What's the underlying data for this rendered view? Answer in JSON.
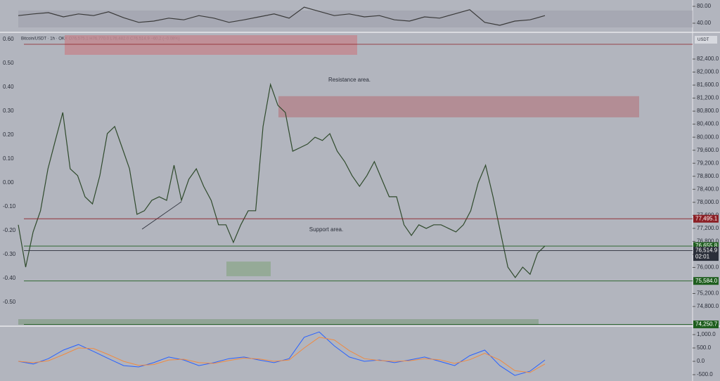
{
  "chart_data": [
    {
      "type": "line",
      "header": "Bitcoin/USDT · 1h · OKX  O76,575.1 H76,770.0 L76,482.0 C76,514.9 −60.2 (−0.08%)",
      "currency": "USDT",
      "color": "#2f4a2c",
      "ylim": [
        74239,
        83134
      ],
      "yticks": [
        {
          "value": 74800,
          "label": "74,800.0"
        },
        {
          "value": 75200,
          "label": "75,200.0"
        },
        {
          "value": 76000,
          "label": "76,000.0"
        },
        {
          "value": 76400,
          "label": "76,400.0"
        },
        {
          "value": 76800,
          "label": "76,800.0"
        },
        {
          "value": 77200,
          "label": "77,200.0"
        },
        {
          "value": 77600,
          "label": "77,600.0"
        },
        {
          "value": 78000,
          "label": "78,000.0"
        },
        {
          "value": 78400,
          "label": "78,400.0"
        },
        {
          "value": 78800,
          "label": "78,800.0"
        },
        {
          "value": 79200,
          "label": "79,200.0"
        },
        {
          "value": 79600,
          "label": "79,600.0"
        },
        {
          "value": 80000,
          "label": "80,000.0"
        },
        {
          "value": 80400,
          "label": "80,400.0"
        },
        {
          "value": 80800,
          "label": "80,800.0"
        },
        {
          "value": 81200,
          "label": "81,200.0"
        },
        {
          "value": 81600,
          "label": "81,600.0"
        },
        {
          "value": 82000,
          "label": "82,000.0"
        },
        {
          "value": 82400,
          "label": "82,400.0"
        }
      ],
      "y2lim": [
        -0.594,
        0.618
      ],
      "y2ticks": [
        {
          "value": 0.6,
          "label": "0.60"
        },
        {
          "value": 0.5,
          "label": "0.50"
        },
        {
          "value": 0.4,
          "label": "0.40"
        },
        {
          "value": 0.3,
          "label": "0.30"
        },
        {
          "value": 0.2,
          "label": "0.20"
        },
        {
          "value": 0.1,
          "label": "0.10"
        },
        {
          "value": 0,
          "label": "0.00"
        },
        {
          "value": -0.1,
          "label": "-0.10"
        },
        {
          "value": -0.2,
          "label": "-0.20"
        },
        {
          "value": -0.3,
          "label": "-0.30"
        },
        {
          "value": -0.4,
          "label": "-0.40"
        },
        {
          "value": -0.5,
          "label": "-0.50"
        }
      ],
      "values": [
        77310,
        76010,
        77090,
        77740,
        79030,
        79900,
        80760,
        79030,
        78820,
        78170,
        77950,
        78820,
        80110,
        80330,
        79680,
        79030,
        77630,
        77740,
        78060,
        78170,
        78060,
        79140,
        78060,
        78710,
        79030,
        78490,
        78060,
        77310,
        77310,
        76770,
        77310,
        77740,
        77740,
        80330,
        81620,
        80980,
        80760,
        79570,
        79680,
        79790,
        80000,
        79900,
        80110,
        79570,
        79250,
        78820,
        78490,
        78820,
        79250,
        78710,
        78170,
        78170,
        77310,
        76980,
        77310,
        77200,
        77310,
        77310,
        77200,
        77090,
        77310,
        77740,
        78600,
        79140,
        78170,
        77090,
        76010,
        75690,
        76010,
        75790,
        76440,
        76660
      ],
      "price_lines": [
        {
          "value": 82853,
          "color": "#8b1e24"
        },
        {
          "value": 77495.1,
          "label": "77,495.1",
          "color": "#8b1e24"
        },
        {
          "value": 76655.8,
          "label": "76,655.8",
          "color": "#1e5e1e"
        },
        {
          "value": 76514.9,
          "label": "76,514.9",
          "sub": "02:01",
          "color": "#2a2e39"
        },
        {
          "value": 75584.0,
          "label": "75,584.0",
          "color": "#1e5e1e"
        },
        {
          "value": 74250.7,
          "label": "74,250.7",
          "color": "#1e5e1e"
        }
      ],
      "zones": [
        {
          "from": 82530,
          "to": 83134,
          "color": "#c28a92"
        },
        {
          "from": 80610,
          "to": 81260,
          "color": "#b3868e"
        },
        {
          "from": 75730,
          "to": 76180,
          "color": "#8fa891"
        }
      ],
      "annotations": [
        "Resistance area.",
        "Support area."
      ]
    },
    {
      "type": "line",
      "color": "#3a3a3a",
      "ylim": [
        21.7,
        88.3
      ],
      "yticks": [
        {
          "value": 80,
          "label": "80.00"
        },
        {
          "value": 40,
          "label": "40.00"
        }
      ],
      "band": [
        30,
        70
      ],
      "values": [
        58,
        62,
        65,
        55,
        62,
        58,
        67,
        53,
        42,
        45,
        52,
        48,
        58,
        52,
        42,
        48,
        55,
        62,
        52,
        78,
        68,
        58,
        62,
        55,
        58,
        48,
        45,
        55,
        52,
        62,
        72,
        42,
        35,
        45,
        48,
        58
      ]
    },
    {
      "type": "line",
      "ylim": [
        -684,
        1263
      ],
      "yticks": [
        {
          "value": 1000,
          "label": "1,000.0"
        },
        {
          "value": 500,
          "label": "500.0"
        },
        {
          "value": 0,
          "label": "0.0"
        },
        {
          "value": -500,
          "label": "-500.0"
        }
      ],
      "series": [
        {
          "color": "#2962ff",
          "values": [
            0,
            -100,
            100,
            420,
            630,
            370,
            100,
            -160,
            -210,
            -50,
            160,
            50,
            -160,
            -50,
            100,
            160,
            50,
            -50,
            100,
            900,
            1100,
            580,
            160,
            0,
            50,
            -50,
            50,
            160,
            0,
            -160,
            210,
            420,
            -160,
            -530,
            -370,
            50
          ]
        },
        {
          "color": "#f08a40",
          "values": [
            0,
            -50,
            20,
            250,
            500,
            480,
            250,
            0,
            -150,
            -120,
            50,
            80,
            -50,
            -80,
            30,
            120,
            90,
            0,
            50,
            500,
            900,
            800,
            400,
            100,
            30,
            0,
            20,
            100,
            60,
            -80,
            60,
            300,
            50,
            -350,
            -420,
            -100
          ]
        }
      ]
    }
  ]
}
